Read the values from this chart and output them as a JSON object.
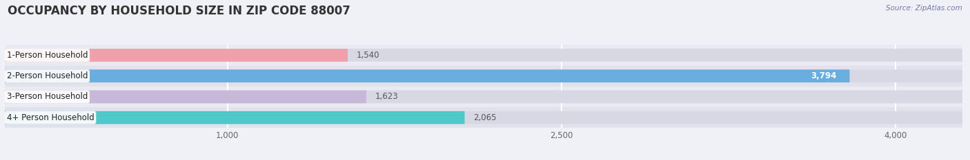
{
  "title": "OCCUPANCY BY HOUSEHOLD SIZE IN ZIP CODE 88007",
  "source": "Source: ZipAtlas.com",
  "categories": [
    "1-Person Household",
    "2-Person Household",
    "3-Person Household",
    "4+ Person Household"
  ],
  "values": [
    1540,
    3794,
    1623,
    2065
  ],
  "bar_colors": [
    "#f0a0aa",
    "#6aaee0",
    "#c8b8d8",
    "#4ec8c8"
  ],
  "xlim": [
    0,
    4300
  ],
  "xticks": [
    1000,
    2500,
    4000
  ],
  "xticklabels": [
    "1,000",
    "2,500",
    "4,000"
  ],
  "label_fontsize": 8.5,
  "value_fontsize": 8.5,
  "title_fontsize": 12,
  "background_color": "#f0f0f7",
  "row_colors_even": "#eaeaf2",
  "row_colors_odd": "#e2e2ec",
  "bar_bg_color": "#d8d8e4",
  "grid_color": "#ffffff",
  "label_box_color": "#ffffff",
  "value_color_inside": "#ffffff",
  "value_color_outside": "#555555"
}
